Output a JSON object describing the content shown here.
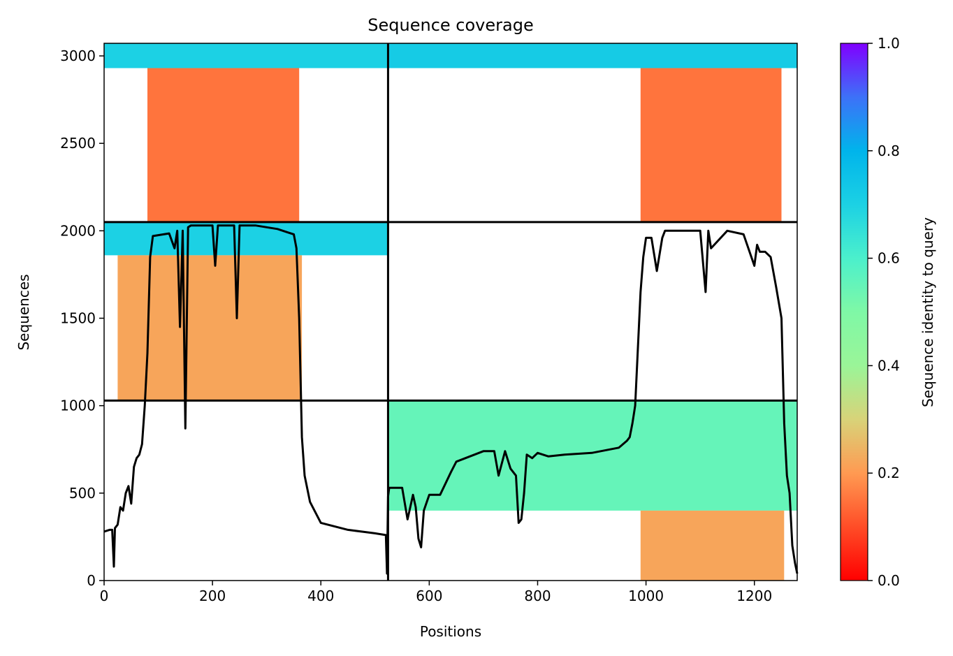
{
  "chart_data": {
    "type": "heatmap",
    "title": "Sequence coverage",
    "xlabel": "Positions",
    "ylabel": "Sequences",
    "xlim": [
      0,
      1279
    ],
    "ylim": [
      0,
      3072
    ],
    "xticks": [
      0,
      200,
      400,
      600,
      800,
      1000,
      1200
    ],
    "yticks": [
      0,
      500,
      1000,
      1500,
      2000,
      2500,
      3000
    ],
    "colorbar": {
      "label": "Sequence identity to query",
      "range": [
        0.0,
        1.0
      ],
      "ticks": [
        "0.0",
        "0.2",
        "0.4",
        "0.6",
        "0.8",
        "1.0"
      ],
      "colormap": "rainbow_r"
    },
    "block_boundaries": {
      "x": [
        524
      ],
      "y": [
        1029,
        2050
      ]
    },
    "grid": false,
    "blocks": [
      {
        "x": [
          0,
          524
        ],
        "y": [
          2930,
          3072
        ],
        "identity": 0.7
      },
      {
        "x": [
          80,
          360
        ],
        "y": [
          2050,
          2930
        ],
        "identity": 0.15
      },
      {
        "x": [
          0,
          524
        ],
        "y": [
          1860,
          2050
        ],
        "identity": 0.7
      },
      {
        "x": [
          25,
          365
        ],
        "y": [
          1029,
          1860
        ],
        "identity": 0.22
      },
      {
        "x": [
          524,
          1279
        ],
        "y": [
          2930,
          3072
        ],
        "identity": 0.72
      },
      {
        "x": [
          990,
          1250
        ],
        "y": [
          2050,
          2930
        ],
        "identity": 0.15
      },
      {
        "x": [
          524,
          1279
        ],
        "y": [
          400,
          1029
        ],
        "identity": 0.55
      },
      {
        "x": [
          990,
          1255
        ],
        "y": [
          0,
          400
        ],
        "identity": 0.22
      }
    ],
    "coverage_line": {
      "x": [
        0,
        10,
        15,
        18,
        20,
        25,
        30,
        35,
        40,
        45,
        50,
        55,
        60,
        65,
        70,
        75,
        80,
        85,
        90,
        100,
        120,
        130,
        135,
        140,
        145,
        150,
        155,
        160,
        170,
        180,
        200,
        205,
        210,
        220,
        240,
        245,
        250,
        280,
        300,
        320,
        340,
        350,
        355,
        360,
        365,
        370,
        380,
        400,
        450,
        500,
        520,
        522,
        524,
        526,
        530,
        550,
        560,
        570,
        575,
        580,
        585,
        590,
        600,
        620,
        640,
        650,
        700,
        720,
        728,
        740,
        750,
        760,
        765,
        770,
        775,
        780,
        790,
        800,
        820,
        850,
        900,
        950,
        965,
        970,
        975,
        980,
        990,
        995,
        1000,
        1010,
        1020,
        1030,
        1035,
        1040,
        1050,
        1100,
        1110,
        1115,
        1120,
        1150,
        1180,
        1200,
        1205,
        1210,
        1220,
        1230,
        1240,
        1250,
        1255,
        1260,
        1265,
        1270,
        1275,
        1279
      ],
      "y": [
        280,
        290,
        290,
        80,
        300,
        320,
        420,
        400,
        500,
        540,
        440,
        650,
        700,
        720,
        780,
        1000,
        1300,
        1850,
        1970,
        1975,
        1985,
        1900,
        2000,
        1450,
        2000,
        870,
        2020,
        2030,
        2030,
        2030,
        2030,
        1800,
        2030,
        2030,
        2030,
        1500,
        2030,
        2030,
        2020,
        2010,
        1990,
        1980,
        1900,
        1500,
        820,
        600,
        450,
        330,
        290,
        270,
        260,
        40,
        480,
        530,
        530,
        530,
        350,
        490,
        420,
        240,
        190,
        400,
        490,
        490,
        620,
        680,
        740,
        740,
        600,
        740,
        640,
        600,
        330,
        350,
        500,
        720,
        700,
        730,
        710,
        720,
        730,
        760,
        800,
        820,
        900,
        1000,
        1650,
        1850,
        1960,
        1960,
        1770,
        1960,
        2000,
        2000,
        2000,
        2000,
        1650,
        2000,
        1900,
        2000,
        1980,
        1800,
        1920,
        1880,
        1880,
        1850,
        1680,
        1500,
        900,
        600,
        500,
        200,
        100,
        40
      ]
    }
  }
}
